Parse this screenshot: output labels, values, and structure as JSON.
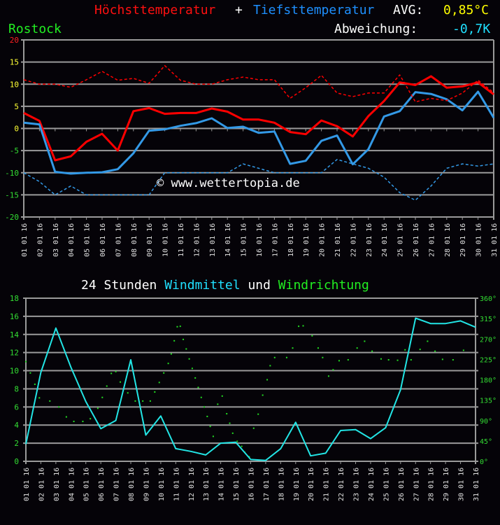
{
  "header": {
    "title_max": "Höchsttemperatur",
    "plus": "+",
    "title_min": "Tiefsttemperatur",
    "avg_label": "AVG:",
    "avg_value": "0,85°C",
    "station": "Rostock",
    "deviation_label": "Abweichung:",
    "deviation_value": "-0,7K",
    "watermark": "© www.wettertopia.de"
  },
  "wind_header": {
    "prefix": "24 Stunden",
    "mean": "Windmittel",
    "und": "und",
    "direction": "Windrichtung"
  },
  "colors": {
    "max": "#ff0000",
    "min": "#3399e6",
    "wind": "#22e5e5",
    "direction": "#22dd22",
    "grid": "#a0a0a0"
  },
  "chart_data": [
    {
      "type": "line",
      "title": "Höchsttemperatur + Tiefsttemperatur",
      "station": "Rostock",
      "xlabel": "",
      "ylabel": "°C",
      "ylim": [
        -20,
        20
      ],
      "yticks": [
        20,
        15,
        10,
        5,
        0,
        -5,
        -10,
        -15,
        -20
      ],
      "grid": true,
      "categories": [
        "01.01.16",
        "02.01.16",
        "03.01.16",
        "04.01.16",
        "05.01.16",
        "06.01.16",
        "07.01.16",
        "08.01.16",
        "09.01.16",
        "10.01.16",
        "11.01.16",
        "12.01.16",
        "13.01.16",
        "14.01.16",
        "15.01.16",
        "16.01.16",
        "17.01.16",
        "18.01.16",
        "19.01.16",
        "20.01.16",
        "21.01.16",
        "22.01.16",
        "23.01.16",
        "24.01.16",
        "25.01.16",
        "26.01.16",
        "27.01.16",
        "28.01.16",
        "29.01.16",
        "30.01.16",
        "31.01.16"
      ],
      "series": [
        {
          "name": "Höchsttemperatur",
          "style": "solid",
          "color": "#ff0000",
          "values": [
            3.5,
            1.7,
            -7.2,
            -6.3,
            -3,
            -1.2,
            -5,
            3.9,
            4.6,
            3.3,
            3.5,
            3.5,
            4.5,
            3.8,
            2,
            2,
            1.3,
            -0.8,
            -1.3,
            1.8,
            0.5,
            -1.8,
            2.8,
            6.2,
            10.4,
            9.8,
            11.8,
            9.2,
            9.5,
            10.4,
            7.7
          ]
        },
        {
          "name": "Tiefsttemperatur",
          "style": "solid",
          "color": "#3399e6",
          "values": [
            1.3,
            0.9,
            -9.8,
            -10.2,
            -10,
            -9.9,
            -9.2,
            -5.6,
            -0.5,
            -0.2,
            0.6,
            1.2,
            2.3,
            0.1,
            0.4,
            -1,
            -0.7,
            -8,
            -7.3,
            -2.8,
            -1.6,
            -8.1,
            -4.7,
            2.7,
            3.9,
            8.2,
            7.8,
            6.6,
            4.1,
            8.3,
            2.4
          ]
        },
        {
          "name": "Höchsttemperatur (Mittel)",
          "style": "dashed",
          "color": "#ff0000",
          "values": [
            11,
            10,
            10,
            9.3,
            11,
            12.9,
            10.9,
            11.3,
            10.2,
            14.2,
            10.9,
            10,
            10,
            11,
            11.6,
            11,
            11,
            6.8,
            9.2,
            12,
            8,
            7.2,
            8,
            8,
            12.1,
            6,
            6.8,
            6.3,
            8,
            10.9,
            8.1
          ]
        },
        {
          "name": "Tiefsttemperatur (Mittel)",
          "style": "dashed",
          "color": "#3399e6",
          "values": [
            -10,
            -12,
            -15,
            -13,
            -15,
            -15,
            -15,
            -15,
            -15,
            -10,
            -10,
            -10,
            -10,
            -10,
            -8,
            -9,
            -10,
            -10,
            -10,
            -10,
            -7,
            -8,
            -9,
            -11,
            -14.5,
            -16.2,
            -13,
            -9,
            -8,
            -8.5,
            -8
          ]
        }
      ],
      "annotations": [
        "AVG: 0,85°C",
        "Abweichung: -0,7K",
        "© www.wettertopia.de"
      ]
    },
    {
      "type": "line",
      "title": "24 Stunden Windmittel und Windrichtung",
      "xlabel": "",
      "ylabel": "Windmittel",
      "ylim": [
        0,
        18
      ],
      "yticks": [
        18,
        16,
        14,
        12,
        10,
        8,
        6,
        4,
        2,
        0
      ],
      "y2label": "Windrichtung",
      "y2lim": [
        0,
        360
      ],
      "y2ticks": [
        "360°",
        "315°",
        "270°",
        "225°",
        "180°",
        "135°",
        "90°",
        "45°",
        "0°"
      ],
      "grid": true,
      "categories": [
        "01.01.16",
        "02.01.16",
        "03.01.16",
        "04.01.16",
        "05.01.16",
        "06.01.16",
        "07.01.16",
        "08.01.16",
        "09.01.16",
        "10.01.16",
        "11.01.16",
        "12.01.16",
        "13.01.16",
        "14.01.16",
        "15.01.16",
        "16.01.16",
        "17.01.16",
        "18.01.16",
        "19.01.16",
        "20.01.16",
        "21.01.16",
        "22.01.16",
        "23.01.16",
        "24.01.16",
        "25.01.16",
        "26.01.16",
        "27.01.16",
        "28.01.16",
        "29.01.16",
        "30.01.16",
        "31.01.16"
      ],
      "series": [
        {
          "name": "Windmittel",
          "style": "solid",
          "color": "#22e5e5",
          "values": [
            1.9,
            9.8,
            14.7,
            10.4,
            6.6,
            3.6,
            4.5,
            11.2,
            2.9,
            5,
            1.4,
            1.1,
            0.7,
            2,
            2.1,
            0.2,
            0.1,
            1.4,
            4.3,
            0.6,
            0.9,
            3.4,
            3.5,
            2.5,
            3.7,
            7.9,
            15.8,
            15.2,
            15.2,
            15.5,
            14.8
          ]
        }
      ],
      "direction_points_deg": [
        [
          0.0,
          220
        ],
        [
          0.3,
          195
        ],
        [
          0.6,
          170
        ],
        [
          0.9,
          140
        ],
        [
          1.6,
          133
        ],
        [
          2.2,
          120
        ],
        [
          2.7,
          98
        ],
        [
          3.2,
          88
        ],
        [
          3.8,
          88
        ],
        [
          4.3,
          94
        ],
        [
          4.8,
          117
        ],
        [
          5.1,
          141
        ],
        [
          5.4,
          166
        ],
        [
          5.7,
          194
        ],
        [
          6.0,
          198
        ],
        [
          6.3,
          175
        ],
        [
          6.8,
          151
        ],
        [
          7.3,
          133
        ],
        [
          7.8,
          133
        ],
        [
          8.3,
          133
        ],
        [
          8.6,
          153
        ],
        [
          8.9,
          174
        ],
        [
          9.2,
          195
        ],
        [
          9.5,
          216
        ],
        [
          9.7,
          237
        ],
        [
          9.9,
          266
        ],
        [
          10.1,
          297
        ],
        [
          10.3,
          298
        ],
        [
          10.5,
          269
        ],
        [
          10.7,
          248
        ],
        [
          10.9,
          226
        ],
        [
          11.1,
          205
        ],
        [
          11.3,
          184
        ],
        [
          11.5,
          163
        ],
        [
          11.7,
          141
        ],
        [
          11.9,
          120
        ],
        [
          12.1,
          99
        ],
        [
          12.3,
          77
        ],
        [
          12.5,
          55
        ],
        [
          12.8,
          126
        ],
        [
          13.1,
          144
        ],
        [
          13.4,
          105
        ],
        [
          13.6,
          84
        ],
        [
          13.8,
          62
        ],
        [
          14.1,
          44
        ],
        [
          14.4,
          33
        ],
        [
          14.6,
          20
        ],
        [
          14.9,
          10
        ],
        [
          15.2,
          73
        ],
        [
          15.5,
          104
        ],
        [
          15.8,
          146
        ],
        [
          16.1,
          180
        ],
        [
          16.3,
          211
        ],
        [
          16.6,
          229
        ],
        [
          17.4,
          229
        ],
        [
          17.8,
          250
        ],
        [
          18.2,
          298
        ],
        [
          18.5,
          299
        ],
        [
          19.1,
          277
        ],
        [
          19.5,
          250
        ],
        [
          19.8,
          229
        ],
        [
          20.2,
          188
        ],
        [
          20.5,
          202
        ],
        [
          20.9,
          222
        ],
        [
          21.5,
          224
        ],
        [
          22.1,
          250
        ],
        [
          22.6,
          265
        ],
        [
          23.1,
          243
        ],
        [
          23.7,
          226
        ],
        [
          24.2,
          224
        ],
        [
          24.8,
          223
        ],
        [
          25.3,
          246
        ],
        [
          25.7,
          224
        ],
        [
          26.3,
          247
        ],
        [
          26.8,
          265
        ],
        [
          27.3,
          243
        ],
        [
          27.8,
          225
        ],
        [
          28.5,
          224
        ],
        [
          29.2,
          245
        ]
      ]
    }
  ]
}
